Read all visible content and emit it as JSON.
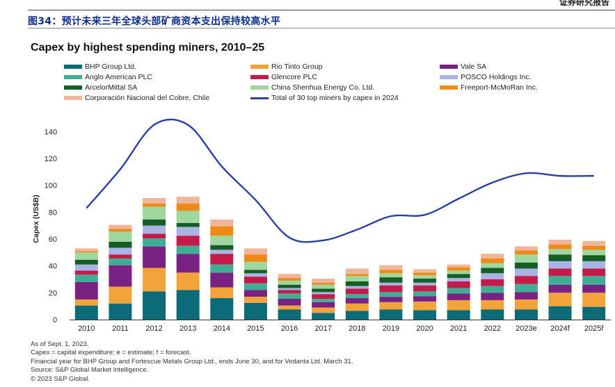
{
  "header": {
    "report_tag": "证券研究报告",
    "figure_title": "图34：预计未来三年全球头部矿商资本支出保持较高水平"
  },
  "chart_data": {
    "type": "bar",
    "stacked": true,
    "title": "Capex by highest spending miners, 2010–25",
    "xlabel": "",
    "ylabel": "Capex (US$B)",
    "ylim": [
      0,
      150
    ],
    "yticks": [
      0,
      20,
      40,
      60,
      80,
      100,
      120,
      140
    ],
    "grid": false,
    "legend_position": "top",
    "categories": [
      "2010",
      "2011",
      "2012",
      "2013",
      "2014",
      "2015",
      "2016",
      "2017",
      "2018",
      "2019",
      "2020",
      "2021",
      "2022",
      "2023e",
      "2024f",
      "2025f"
    ],
    "series": [
      {
        "name": "BHP Group Ltd.",
        "color": "#0b6b78",
        "values": [
          10.5,
          12,
          21,
          22,
          16,
          12.5,
          7.5,
          5,
          6.5,
          7.5,
          7,
          7,
          7.5,
          7.5,
          10,
          9.5
        ]
      },
      {
        "name": "Rio Tinto Group",
        "color": "#f2a43a",
        "values": [
          4.5,
          12.5,
          17.5,
          13,
          8,
          4.5,
          3,
          4,
          5.5,
          5.5,
          6.5,
          7.5,
          7,
          7.5,
          10,
          10.5
        ]
      },
      {
        "name": "Vale SA",
        "color": "#7a2283",
        "values": [
          13,
          16,
          16,
          14,
          11,
          5,
          5,
          4,
          4,
          4,
          4,
          5,
          5.5,
          5.5,
          6,
          6
        ]
      },
      {
        "name": "Anglo American PLC",
        "color": "#3fae94",
        "values": [
          5.5,
          5,
          6,
          6,
          6,
          5,
          4,
          2.5,
          3,
          3.5,
          3.5,
          4,
          5,
          6,
          6.5,
          6.5
        ]
      },
      {
        "name": "Glencore PLC",
        "color": "#c51b4b",
        "values": [
          3,
          3,
          3.5,
          7.5,
          8,
          5,
          2.5,
          3.5,
          4,
          5,
          4.5,
          5,
          5,
          6,
          5.5,
          5.5
        ]
      },
      {
        "name": "POSCO Holdings Inc.",
        "color": "#a8b4e4",
        "values": [
          4.5,
          5,
          6,
          6.5,
          3,
          2.5,
          1.5,
          1.5,
          2,
          2,
          2,
          2.5,
          4.5,
          5.5,
          5.5,
          5.5
        ]
      },
      {
        "name": "ArcelorMittal SA",
        "color": "#175e26",
        "values": [
          3.5,
          4.5,
          4.5,
          3,
          3.5,
          2.5,
          2.5,
          2.5,
          3.5,
          4,
          3,
          3,
          4,
          4.5,
          5,
          4.5
        ]
      },
      {
        "name": "China Shenhua Energy Co. Ltd.",
        "color": "#9fd79f",
        "values": [
          5.5,
          7.5,
          9.5,
          9,
          7,
          6,
          3,
          3,
          4,
          3,
          2.5,
          2.5,
          3.5,
          6,
          4,
          4
        ]
      },
      {
        "name": "Freeport-McMoRan Inc.",
        "color": "#ee8a15",
        "values": [
          1,
          2,
          2.5,
          5.5,
          7,
          5.5,
          2,
          1.5,
          1.5,
          2.5,
          2,
          2.5,
          3.5,
          3,
          3.5,
          3
        ]
      },
      {
        "name": "Corporación Nacional del Cobre, Chile",
        "color": "#f0b59a",
        "values": [
          2,
          3,
          4,
          5,
          5,
          4.5,
          3,
          3,
          4,
          3.5,
          2.5,
          2,
          3.5,
          3,
          3.5,
          3.5
        ]
      }
    ],
    "line_series": {
      "name": "Total of 30 top miners by capex in 2024",
      "color": "#2a3ea8",
      "values": [
        83,
        112,
        145,
        145,
        114,
        89,
        61,
        59,
        67,
        77,
        78,
        90,
        102,
        109,
        107,
        107
      ]
    },
    "notes": [
      "As of Sept. 1, 2023.",
      "Capex = capital expenditure; e = estimate; f = forecast.",
      "Financial year for BHP Group and Fortescue Metals Group Ltd., ends June 30, and for Vedanta Ltd. March 31.",
      "Source: S&P Global Market Intelligence.",
      "© 2023 S&P Global."
    ]
  }
}
